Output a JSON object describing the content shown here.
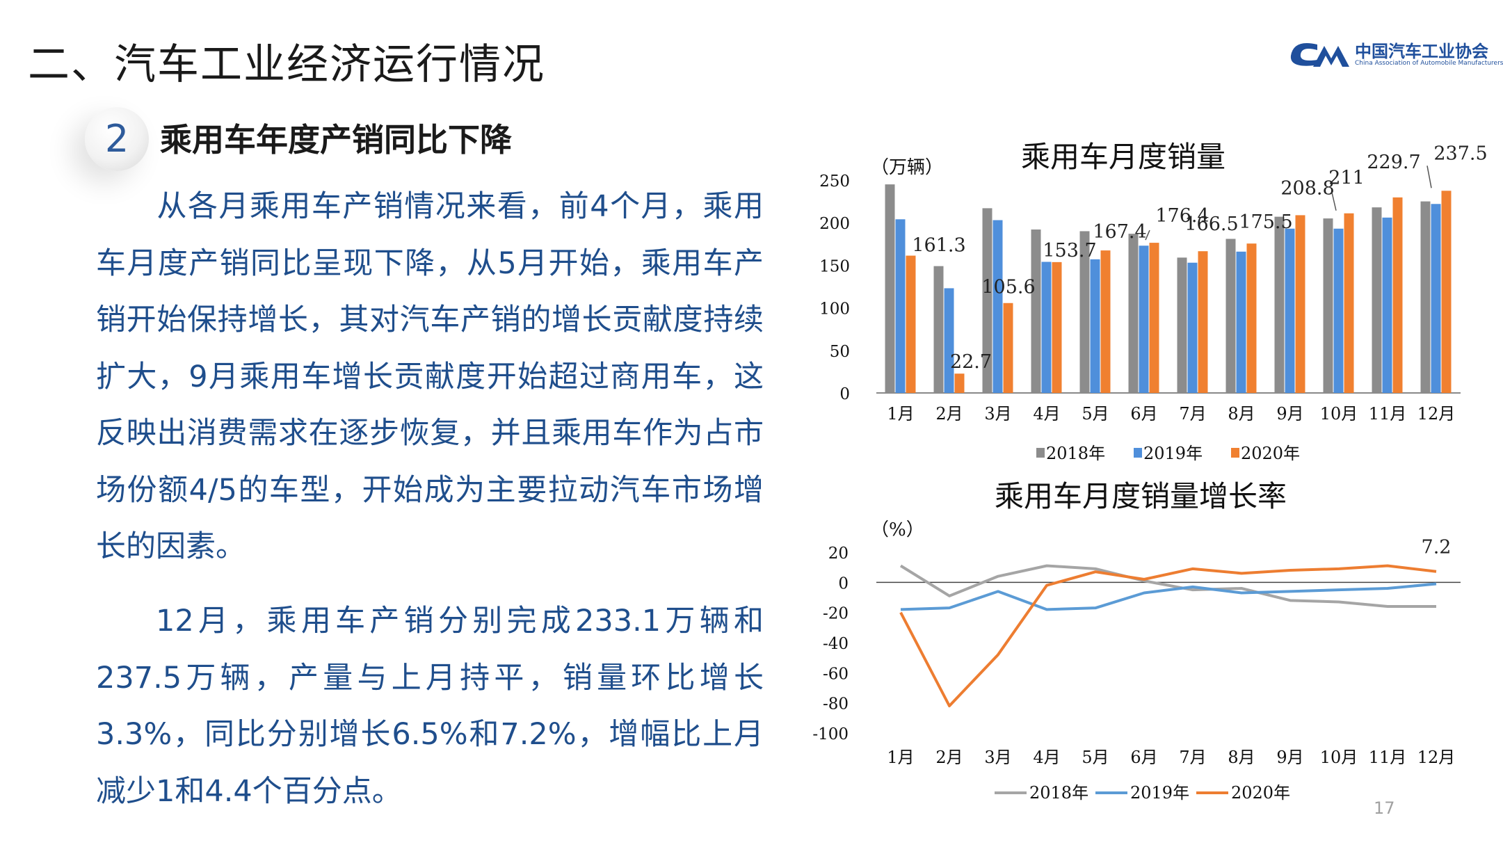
{
  "header": {
    "title": "二、汽车工业经济运行情况",
    "logo_cn": "中国汽车工业协会",
    "logo_en": "China Association of Automobile Manufacturers"
  },
  "section": {
    "number": "2",
    "title": "乘用车年度产销同比下降"
  },
  "body": {
    "paragraph1": "从各月乘用车产销情况来看，前4个月，乘用车月度产销同比呈现下降，从5月开始，乘用车产销开始保持增长，其对汽车产销的增长贡献度持续扩大，9月乘用车增长贡献度开始超过商用车，这反映出消费需求在逐步恢复，并且乘用车作为占市场份额4/5的车型，开始成为主要拉动汽车市场增长的因素。",
    "paragraph2": "12月，乘用车产销分别完成233.1万辆和237.5万辆，产量与上月持平，销量环比增长3.3%，同比分别增长6.5%和7.2%，增幅比上月减少1和4.4个百分点。"
  },
  "page_number": "17",
  "colors": {
    "s2018": "#a5a5a5",
    "s2019": "#5b9bd5",
    "s2020": "#ed7d31",
    "bar2018": "#8c8c8c",
    "bar2019": "#4f8fdb",
    "bar2020": "#f08030"
  },
  "chart_data": [
    {
      "type": "bar",
      "title": "乘用车月度销量",
      "ylabel": "（万辆）",
      "ylim": [
        0,
        250
      ],
      "yticks": [
        0,
        50,
        100,
        150,
        200,
        250
      ],
      "categories": [
        "1月",
        "2月",
        "3月",
        "4月",
        "5月",
        "6月",
        "7月",
        "8月",
        "9月",
        "10月",
        "11月",
        "12月"
      ],
      "series": [
        {
          "name": "2018年",
          "values": [
            245,
            149,
            217,
            192,
            190,
            187,
            159,
            181,
            207,
            205,
            218,
            225
          ]
        },
        {
          "name": "2019年",
          "values": [
            204,
            123,
            203,
            154,
            157,
            173,
            153,
            166,
            193,
            193,
            206,
            222
          ]
        },
        {
          "name": "2020年",
          "values": [
            161.3,
            22.7,
            105.6,
            153.7,
            167.4,
            176.4,
            166.5,
            175.5,
            208.8,
            211,
            229.7,
            237.5
          ]
        }
      ],
      "data_labels": [
        "161.3",
        "22.7",
        "105.6",
        "153.7",
        "167.4",
        "176.4",
        "166.5",
        "175.5",
        "208.8",
        "211",
        "229.7",
        "237.5"
      ],
      "legend": "bottom"
    },
    {
      "type": "line",
      "title": "乘用车月度销量增长率",
      "ylabel": "（%）",
      "ylim": [
        -100,
        20
      ],
      "yticks": [
        20,
        0,
        -20,
        -40,
        -60,
        -80,
        -100
      ],
      "categories": [
        "1月",
        "2月",
        "3月",
        "4月",
        "5月",
        "6月",
        "7月",
        "8月",
        "9月",
        "10月",
        "11月",
        "12月"
      ],
      "series": [
        {
          "name": "2018年",
          "values": [
            11,
            -9,
            4,
            11,
            9,
            1,
            -5,
            -4,
            -12,
            -13,
            -16,
            -16
          ]
        },
        {
          "name": "2019年",
          "values": [
            -18,
            -17,
            -6,
            -18,
            -17,
            -7,
            -3,
            -7,
            -6,
            -5,
            -4,
            -1
          ]
        },
        {
          "name": "2020年",
          "values": [
            -20,
            -82,
            -48,
            -2,
            7,
            2,
            9,
            6,
            8,
            9,
            11,
            7.2
          ]
        }
      ],
      "data_labels": [
        "7.2"
      ],
      "legend": "bottom"
    }
  ]
}
